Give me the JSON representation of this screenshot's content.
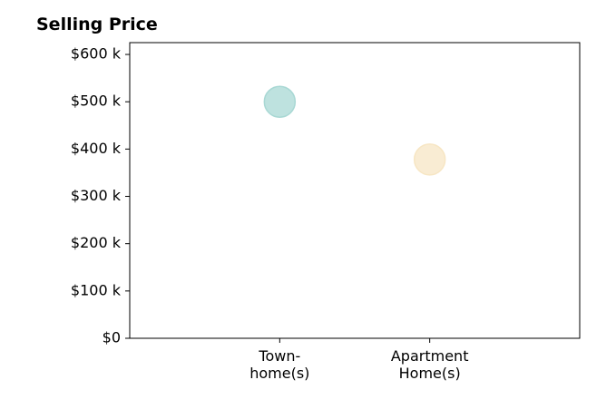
{
  "chart_data": {
    "type": "scatter",
    "title": "Selling Price",
    "xlabel": "",
    "ylabel": "",
    "categories": [
      [
        "Town-",
        "home(s)"
      ],
      [
        "Apartment",
        "Home(s)"
      ]
    ],
    "points": [
      {
        "category_index": 0,
        "value": 500000,
        "color": "#a8d8d4"
      },
      {
        "category_index": 1,
        "value": 378000,
        "color": "#f7e6c4"
      }
    ],
    "y_ticks": [
      {
        "value": 0,
        "label": "$0"
      },
      {
        "value": 100000,
        "label": "$100 k"
      },
      {
        "value": 200000,
        "label": "$200 k"
      },
      {
        "value": 300000,
        "label": "$300 k"
      },
      {
        "value": 400000,
        "label": "$400 k"
      },
      {
        "value": 500000,
        "label": "$500 k"
      },
      {
        "value": 600000,
        "label": "$600 k"
      }
    ],
    "ylim": [
      0,
      625000
    ],
    "xlim": [
      -1,
      2
    ],
    "grid": false,
    "legend": "none"
  }
}
